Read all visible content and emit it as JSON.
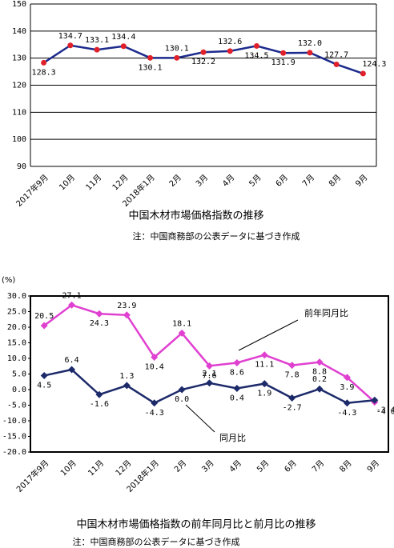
{
  "chart_data": [
    {
      "type": "line",
      "title": "中国木材市場価格指数の推移",
      "note": "注：中国商務部の公表データに基づき作成",
      "categories": [
        "2017年9月",
        "10月",
        "11月",
        "12月",
        "2018年1月",
        "2月",
        "3月",
        "4月",
        "5月",
        "6月",
        "7月",
        "8月",
        "9月"
      ],
      "series": [
        {
          "color": "#1c2a8c",
          "marker_color": "#e0202a",
          "values": [
            128.3,
            134.7,
            133.1,
            134.4,
            130.1,
            130.1,
            132.2,
            132.6,
            134.5,
            131.9,
            132.0,
            127.7,
            124.3
          ],
          "value_labels": [
            "128.3",
            "134.7",
            "133.1",
            "134.4",
            "130.1",
            "130.1",
            "132.2",
            "132.6",
            "134.5",
            "131.9",
            "132.0",
            "127.7",
            "124.3"
          ]
        }
      ],
      "ylim": [
        90,
        150
      ],
      "yticks": [
        90,
        100,
        110,
        120,
        130,
        140,
        150
      ],
      "grid": true
    },
    {
      "type": "line",
      "title": "中国木材市場価格指数の前年同月比と前月比の推移",
      "note": "注：中国商務部の公表データに基づき作成",
      "ylabel": "(%)",
      "categories": [
        "2017年9月",
        "10月",
        "11月",
        "12月",
        "2018年1月",
        "2月",
        "3月",
        "4月",
        "5月",
        "6月",
        "7月",
        "8月",
        "9月"
      ],
      "series": [
        {
          "name": "前年同月比",
          "color": "#e040d0",
          "marker_color": "#e040d0",
          "values": [
            20.5,
            27.1,
            24.3,
            23.9,
            10.4,
            18.1,
            7.6,
            8.6,
            11.1,
            7.8,
            8.8,
            3.9,
            -4.0
          ],
          "value_labels": [
            "20.5",
            "27.1",
            "24.3",
            "23.9",
            "10.4",
            "18.1",
            "7.6",
            "8.6",
            "11.1",
            "7.8",
            "8.8",
            "3.9",
            "-4.0"
          ]
        },
        {
          "name": "同月比",
          "color": "#1c2a6a",
          "marker_color": "#1c2a6a",
          "values": [
            4.5,
            6.4,
            -1.6,
            1.3,
            -4.3,
            0.0,
            2.1,
            0.4,
            1.9,
            -2.7,
            0.2,
            -4.3,
            -3.4
          ],
          "value_labels": [
            "4.5",
            "6.4",
            "-1.6",
            "1.3",
            "-4.3",
            "0.0",
            "2.1",
            "0.4",
            "1.9",
            "-2.7",
            "0.2",
            "-4.3",
            "-3.4"
          ]
        }
      ],
      "ylim": [
        -20,
        30
      ],
      "yticks": [
        {
          "value": -20,
          "label": "-20.0"
        },
        {
          "value": -15,
          "label": "-15.0"
        },
        {
          "value": -10,
          "label": "-10.0"
        },
        {
          "value": -5,
          "label": "-5.0"
        },
        {
          "value": 0,
          "label": "0.0"
        },
        {
          "value": 5,
          "label": "5.0"
        },
        {
          "value": 10,
          "label": "10.0"
        },
        {
          "value": 15,
          "label": "15.0"
        },
        {
          "value": 20,
          "label": "20.0"
        },
        {
          "value": 25,
          "label": "25.0"
        },
        {
          "value": 30,
          "label": "30.0"
        }
      ],
      "grid": false
    }
  ]
}
